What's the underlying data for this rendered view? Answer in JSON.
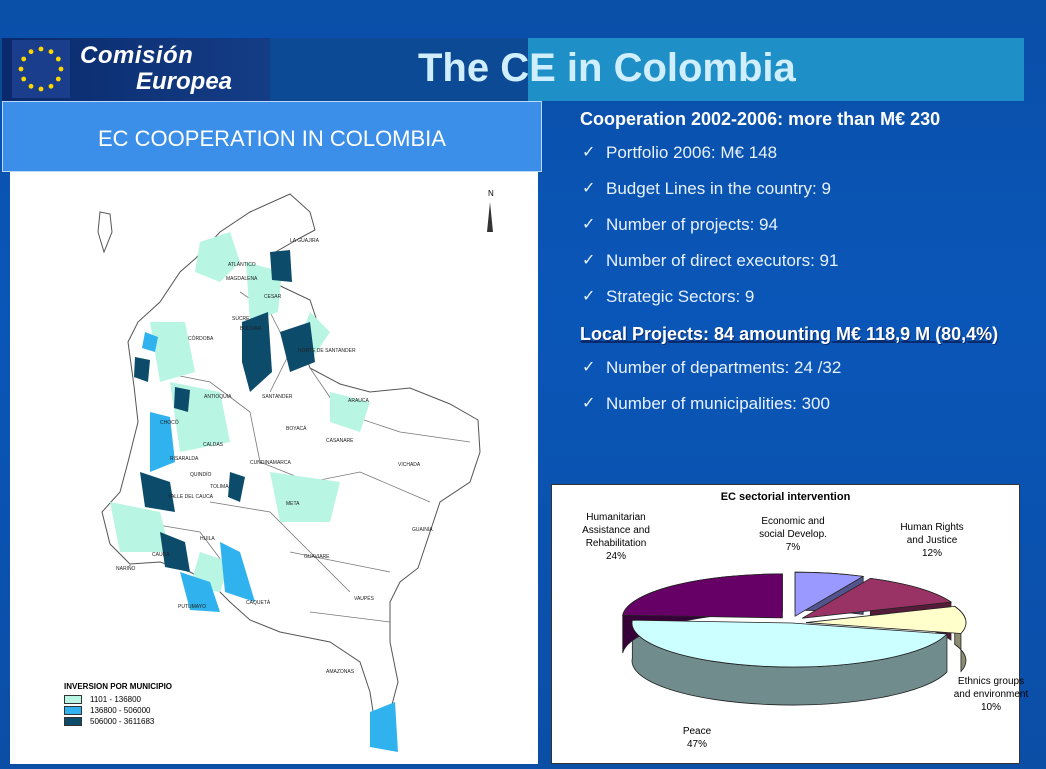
{
  "header": {
    "logo_line1": "Comisión",
    "logo_line2": "Europea",
    "title": "The CE in Colombia"
  },
  "panel": {
    "heading": "EC COOPERATION IN COLOMBIA"
  },
  "map": {
    "north": "N",
    "legend_title": "INVERSION POR MUNICIPIO",
    "legend": [
      {
        "range": "1101 - 136800",
        "color": "#b8f5e2"
      },
      {
        "range": "136800 - 506000",
        "color": "#2fb2ee"
      },
      {
        "range": "506000 - 3611683",
        "color": "#0d4b6b"
      }
    ],
    "regions": [
      "LA GUAJIRA",
      "ATLÁNTICO",
      "MAGDALENA",
      "CESAR",
      "SUCRE",
      "BOLÍVAR",
      "CÓRDOBA",
      "NORTE DE SANTANDER",
      "ANTIOQUIA",
      "SANTANDER",
      "ARAUCA",
      "CHOCÓ",
      "BOYACÁ",
      "CASANARE",
      "CALDAS",
      "RISARALDA",
      "QUINDÍO",
      "CUNDINAMARCA",
      "VICHADA",
      "TOLIMA",
      "VALLE DEL CAUCA",
      "META",
      "GUAINÍA",
      "HUILA",
      "GUAVIARE",
      "CAUCA",
      "NARIÑO",
      "CAQUETÁ",
      "PUTUMAYO",
      "VAUPÉS",
      "AMAZONAS"
    ]
  },
  "cooperation": {
    "heading": "Cooperation 2002-2006:  more than M€ 230",
    "items": [
      "Portfolio 2006:  M€ 148",
      "Budget Lines in the country: 9",
      "Number of projects: 94",
      "Number of direct executors:  91",
      "Strategic Sectors:  9"
    ]
  },
  "local": {
    "heading": "Local Projects: 84 amounting M€ 118,9 M (80,4%)",
    "items": [
      "Number of departments:  24 /32",
      "Number of municipalities: 300"
    ]
  },
  "chart_data": {
    "type": "pie",
    "title": "EC sectorial intervention",
    "slices": [
      {
        "name": "Economic and social Develop.",
        "value": 7,
        "color": "#9999ff",
        "label": "Economic and\nsocial Develop.\n7%"
      },
      {
        "name": "Human Rights and Justice",
        "value": 12,
        "color": "#993366",
        "label": "Human Rights\nand Justice\n12%"
      },
      {
        "name": "Ethnics  groups and environment",
        "value": 10,
        "color": "#ffffcc",
        "label": "Ethnics  groups\nand environment\n10%"
      },
      {
        "name": "Peace",
        "value": 47,
        "color": "#ccffff",
        "label": "Peace\n47%"
      },
      {
        "name": "Humanitarian Assistance and Rehabilitation",
        "value": 24,
        "color": "#660066",
        "label": "Humanitarian\nAssistance and\nRehabilitation\n24%"
      }
    ]
  }
}
